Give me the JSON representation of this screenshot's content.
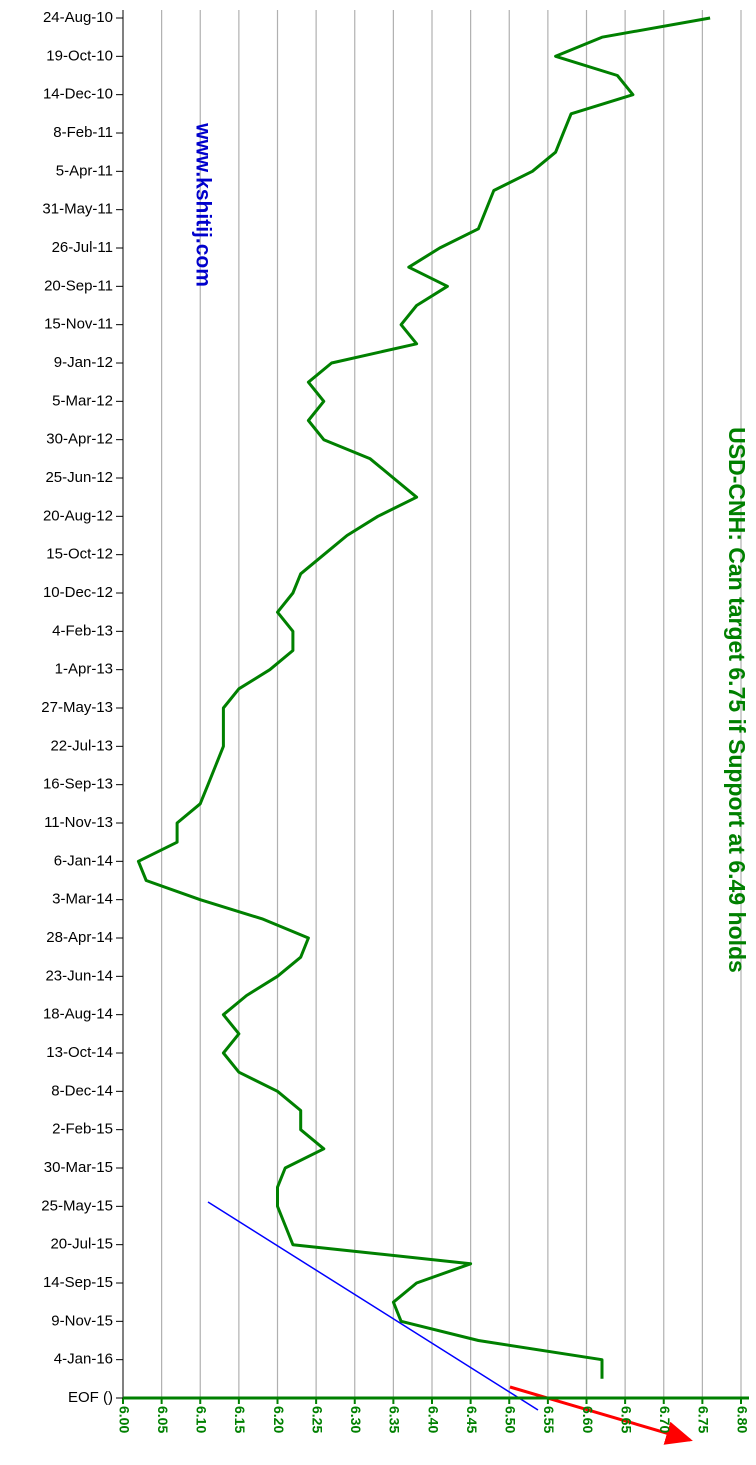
{
  "chart_data": {
    "type": "line",
    "orientation": "horizontal",
    "title": "USD-CNH: Can target 6.75 if Support at 6.49 holds",
    "annotations": [
      "www.kshitij.com"
    ],
    "categories": [
      "24-Aug-10",
      null,
      "19-Oct-10",
      null,
      "14-Dec-10",
      null,
      "8-Feb-11",
      null,
      "5-Apr-11",
      null,
      "31-May-11",
      null,
      "26-Jul-11",
      null,
      "20-Sep-11",
      null,
      "15-Nov-11",
      null,
      "9-Jan-12",
      null,
      "5-Mar-12",
      null,
      "30-Apr-12",
      null,
      "25-Jun-12",
      null,
      "20-Aug-12",
      null,
      "15-Oct-12",
      null,
      "10-Dec-12",
      null,
      "4-Feb-13",
      null,
      "1-Apr-13",
      null,
      "27-May-13",
      null,
      "22-Jul-13",
      null,
      "16-Sep-13",
      null,
      "11-Nov-13",
      null,
      "6-Jan-14",
      null,
      "3-Mar-14",
      null,
      "28-Apr-14",
      null,
      "23-Jun-14",
      null,
      "18-Aug-14",
      null,
      "13-Oct-14",
      null,
      "8-Dec-14",
      null,
      "2-Feb-15",
      null,
      "30-Mar-15",
      null,
      "25-May-15",
      null,
      "20-Jul-15",
      null,
      "14-Sep-15",
      null,
      "9-Nov-15",
      null,
      "4-Jan-16",
      null,
      "EOF ()"
    ],
    "series": [
      {
        "name": "USD-CNH",
        "color": "#008000",
        "values": [
          6.76,
          6.62,
          6.56,
          6.64,
          6.66,
          6.58,
          6.57,
          6.56,
          6.53,
          6.48,
          6.47,
          6.46,
          6.41,
          6.37,
          6.42,
          6.38,
          6.36,
          6.38,
          6.27,
          6.24,
          6.26,
          6.24,
          6.26,
          6.32,
          6.35,
          6.38,
          6.33,
          6.29,
          6.26,
          6.23,
          6.22,
          6.2,
          6.22,
          6.22,
          6.19,
          6.15,
          6.13,
          6.13,
          6.13,
          6.12,
          6.11,
          6.1,
          6.07,
          6.07,
          6.02,
          6.03,
          6.1,
          6.18,
          6.24,
          6.23,
          6.2,
          6.16,
          6.13,
          6.15,
          6.13,
          6.15,
          6.2,
          6.23,
          6.23,
          6.26,
          6.21,
          6.2,
          6.2,
          6.21,
          6.22,
          6.45,
          6.38,
          6.35,
          6.36,
          6.46,
          6.62,
          6.62,
          null
        ]
      }
    ],
    "xlim": [
      6.0,
      6.8
    ],
    "xticks": [
      {
        "value": 6.0,
        "label": "6.00"
      },
      {
        "value": 6.05,
        "label": "6.05"
      },
      {
        "value": 6.1,
        "label": "6.10"
      },
      {
        "value": 6.15,
        "label": "6.15"
      },
      {
        "value": 6.2,
        "label": "6.20"
      },
      {
        "value": 6.25,
        "label": "6.25"
      },
      {
        "value": 6.3,
        "label": "6.30"
      },
      {
        "value": 6.35,
        "label": "6.35"
      },
      {
        "value": 6.4,
        "label": "6.40"
      },
      {
        "value": 6.45,
        "label": "6.45"
      },
      {
        "value": 6.5,
        "label": "6.50"
      },
      {
        "value": 6.55,
        "label": "6.55"
      },
      {
        "value": 6.6,
        "label": "6.60"
      },
      {
        "value": 6.65,
        "label": "6.65"
      },
      {
        "value": 6.7,
        "label": "6.70"
      },
      {
        "value": 6.75,
        "label": "6.75"
      },
      {
        "value": 6.8,
        "label": "6.80"
      }
    ],
    "grid": true
  }
}
